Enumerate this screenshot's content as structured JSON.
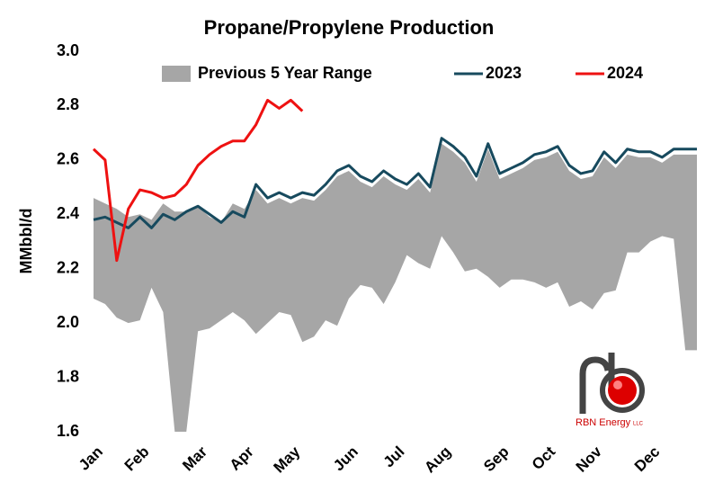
{
  "chart_data": {
    "type": "line",
    "title": "Propane/Propylene Production",
    "y_label": "MMbbl/d",
    "ylim": [
      1.6,
      3.0
    ],
    "yticks": [
      1.6,
      1.8,
      {
        "value": 2.0,
        "label": "2.0"
      },
      2.2,
      2.4,
      2.6,
      2.8,
      {
        "value": 3.0,
        "label": "3.0"
      }
    ],
    "grid": false,
    "legend": "top",
    "categories": [
      "Jan",
      null,
      null,
      null,
      "Feb",
      null,
      null,
      null,
      null,
      "Mar",
      null,
      null,
      null,
      "Apr",
      null,
      null,
      null,
      "May",
      null,
      null,
      null,
      null,
      "Jun",
      null,
      null,
      null,
      "Jul",
      null,
      null,
      null,
      "Aug",
      null,
      null,
      null,
      null,
      "Sep",
      null,
      null,
      null,
      "Oct",
      null,
      null,
      null,
      "Nov",
      null,
      null,
      null,
      null,
      "Dec",
      null,
      null,
      null,
      null
    ],
    "series": [
      {
        "name": "Previous 5 Year Range",
        "type": "range",
        "color": "#a6a6a6",
        "high": [
          2.46,
          2.44,
          2.42,
          2.39,
          2.4,
          2.38,
          2.44,
          2.41,
          2.41,
          2.43,
          2.39,
          2.37,
          2.44,
          2.42,
          2.49,
          2.44,
          2.46,
          2.44,
          2.46,
          2.45,
          2.49,
          2.54,
          2.56,
          2.52,
          2.5,
          2.54,
          2.51,
          2.49,
          2.53,
          2.48,
          2.66,
          2.63,
          2.59,
          2.52,
          2.64,
          2.53,
          2.55,
          2.57,
          2.6,
          2.61,
          2.63,
          2.56,
          2.53,
          2.54,
          2.61,
          2.57,
          2.62,
          2.61,
          2.61,
          2.59,
          2.62,
          2.62,
          2.62
        ],
        "low": [
          2.09,
          2.07,
          2.02,
          2.0,
          2.01,
          2.13,
          2.04,
          1.6,
          1.6,
          1.97,
          1.98,
          2.01,
          2.04,
          2.01,
          1.96,
          2.0,
          2.04,
          2.03,
          1.93,
          1.95,
          2.01,
          1.99,
          2.09,
          2.14,
          2.13,
          2.07,
          2.15,
          2.25,
          2.22,
          2.2,
          2.32,
          2.26,
          2.19,
          2.2,
          2.17,
          2.13,
          2.16,
          2.16,
          2.15,
          2.13,
          2.15,
          2.06,
          2.08,
          2.05,
          2.11,
          2.12,
          2.26,
          2.26,
          2.3,
          2.32,
          2.31,
          1.9,
          1.9
        ]
      },
      {
        "name": "2023",
        "type": "line",
        "color": "#174a5e",
        "values": [
          2.38,
          2.39,
          2.37,
          2.35,
          2.39,
          2.35,
          2.4,
          2.38,
          2.41,
          2.43,
          2.4,
          2.37,
          2.41,
          2.39,
          2.51,
          2.46,
          2.48,
          2.46,
          2.48,
          2.47,
          2.51,
          2.56,
          2.58,
          2.54,
          2.52,
          2.56,
          2.53,
          2.51,
          2.55,
          2.5,
          2.68,
          2.65,
          2.61,
          2.54,
          2.66,
          2.55,
          2.57,
          2.59,
          2.62,
          2.63,
          2.65,
          2.58,
          2.55,
          2.56,
          2.63,
          2.59,
          2.64,
          2.63,
          2.63,
          2.61,
          2.64,
          2.64,
          2.64
        ]
      },
      {
        "name": "2024",
        "type": "line",
        "color": "#ee1111",
        "values": [
          2.64,
          2.6,
          2.23,
          2.42,
          2.49,
          2.48,
          2.46,
          2.47,
          2.51,
          2.58,
          2.62,
          2.65,
          2.67,
          2.67,
          2.73,
          2.82,
          2.79,
          2.82,
          2.78,
          null,
          null,
          null,
          null,
          null,
          null,
          null,
          null,
          null,
          null,
          null,
          null,
          null,
          null,
          null,
          null,
          null,
          null,
          null,
          null,
          null,
          null,
          null,
          null,
          null,
          null,
          null,
          null,
          null,
          null,
          null,
          null,
          null,
          null
        ]
      }
    ],
    "logo": {
      "name": "RBN Energy",
      "suffix": "LLC"
    }
  }
}
